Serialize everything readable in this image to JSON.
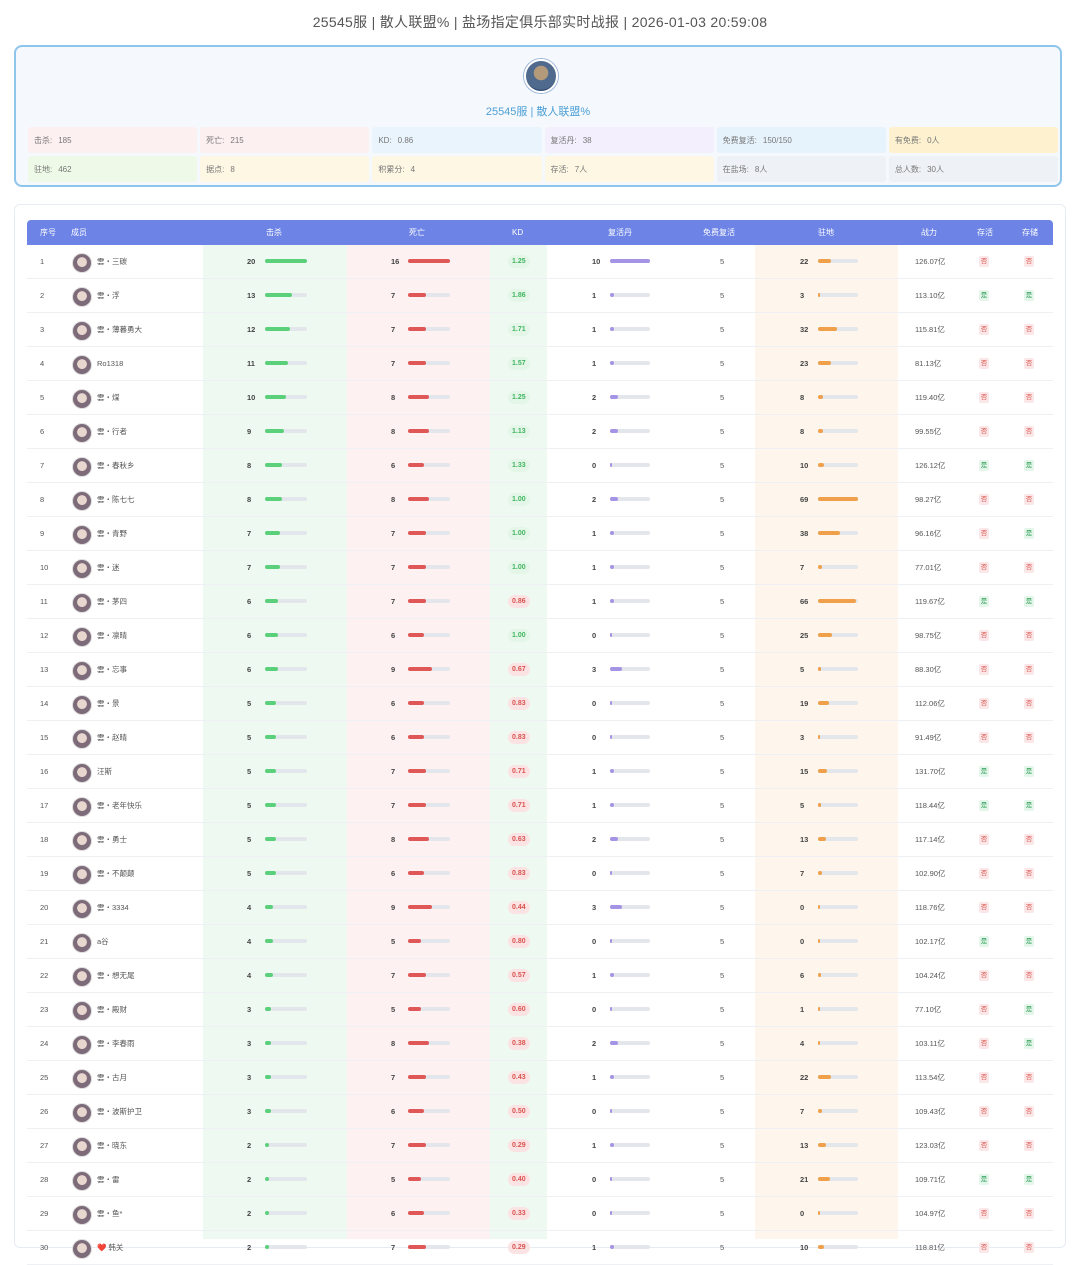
{
  "title": "25545服 | 散人联盟% | 盐场指定俱乐部实时战报 | 2026-01-03 20:59:08",
  "club": {
    "name": "25545服 | 散人联盟%"
  },
  "summary": [
    {
      "k": "击杀:",
      "v": "185",
      "bg": "#fdf0f0"
    },
    {
      "k": "死亡:",
      "v": "215",
      "bg": "#fdf0f0"
    },
    {
      "k": "KD:",
      "v": "0.86",
      "bg": "#eaf4fd"
    },
    {
      "k": "复活丹:",
      "v": "38",
      "bg": "#f3effc"
    },
    {
      "k": "免费复活:",
      "v": "150/150",
      "bg": "#e6f3fc"
    },
    {
      "k": "有免费:",
      "v": "0人",
      "bg": "#fdf1cf"
    },
    {
      "k": "驻地:",
      "v": "462",
      "bg": "#eef9e8"
    },
    {
      "k": "据点:",
      "v": "8",
      "bg": "#fdf7e3"
    },
    {
      "k": "积累分:",
      "v": "4",
      "bg": "#fdf7e3"
    },
    {
      "k": "存活:",
      "v": "7人",
      "bg": "#fdf7e3"
    },
    {
      "k": "在盐场:",
      "v": "8人",
      "bg": "#eef2f6"
    },
    {
      "k": "总人数:",
      "v": "30人",
      "bg": "#eef2f6"
    }
  ],
  "columns": [
    "序号",
    "成员",
    "击杀",
    "死亡",
    "KD",
    "复活丹",
    "免费复活",
    "驻地",
    "战力",
    "存活",
    "存储"
  ],
  "colors": {
    "kills": "#5bd07a",
    "deaths": "#e05757",
    "revive": "#a593e6",
    "base": "#f0a04b",
    "header": "#6d84e6",
    "kd_good": "#41b560",
    "kd_bad": "#d9534f"
  },
  "rows": [
    {
      "idx": "1",
      "name": "雲・三碳",
      "kills": "20",
      "deaths": "16",
      "kd": "1.25",
      "revive": "10",
      "free": "5",
      "base": "22",
      "power": "126.07亿",
      "alive": "否",
      "store": "否"
    },
    {
      "idx": "2",
      "name": "雲・浮",
      "kills": "13",
      "deaths": "7",
      "kd": "1.86",
      "revive": "1",
      "free": "5",
      "base": "3",
      "power": "113.10亿",
      "alive": "是",
      "store": "是"
    },
    {
      "idx": "3",
      "name": "雲・薄暮勇大",
      "kills": "12",
      "deaths": "7",
      "kd": "1.71",
      "revive": "1",
      "free": "5",
      "base": "32",
      "power": "115.81亿",
      "alive": "否",
      "store": "否"
    },
    {
      "idx": "4",
      "name": "Ro1318",
      "kills": "11",
      "deaths": "7",
      "kd": "1.57",
      "revive": "1",
      "free": "5",
      "base": "23",
      "power": "81.13亿",
      "alive": "否",
      "store": "否"
    },
    {
      "idx": "5",
      "name": "雲・煤",
      "kills": "10",
      "deaths": "8",
      "kd": "1.25",
      "revive": "2",
      "free": "5",
      "base": "8",
      "power": "119.40亿",
      "alive": "否",
      "store": "否"
    },
    {
      "idx": "6",
      "name": "雲・行者",
      "kills": "9",
      "deaths": "8",
      "kd": "1.13",
      "revive": "2",
      "free": "5",
      "base": "8",
      "power": "99.55亿",
      "alive": "否",
      "store": "否"
    },
    {
      "idx": "7",
      "name": "雲・春秋乡",
      "kills": "8",
      "deaths": "6",
      "kd": "1.33",
      "revive": "0",
      "free": "5",
      "base": "10",
      "power": "126.12亿",
      "alive": "是",
      "store": "是"
    },
    {
      "idx": "8",
      "name": "雲・陈七七",
      "kills": "8",
      "deaths": "8",
      "kd": "1.00",
      "revive": "2",
      "free": "5",
      "base": "69",
      "power": "98.27亿",
      "alive": "否",
      "store": "否"
    },
    {
      "idx": "9",
      "name": "雲・青野",
      "kills": "7",
      "deaths": "7",
      "kd": "1.00",
      "revive": "1",
      "free": "5",
      "base": "38",
      "power": "96.16亿",
      "alive": "否",
      "store": "是"
    },
    {
      "idx": "10",
      "name": "雲・迷",
      "kills": "7",
      "deaths": "7",
      "kd": "1.00",
      "revive": "1",
      "free": "5",
      "base": "7",
      "power": "77.01亿",
      "alive": "否",
      "store": "否"
    },
    {
      "idx": "11",
      "name": "雲・茅四",
      "kills": "6",
      "deaths": "7",
      "kd": "0.86",
      "revive": "1",
      "free": "5",
      "base": "66",
      "power": "119.67亿",
      "alive": "是",
      "store": "是"
    },
    {
      "idx": "12",
      "name": "雲・凛晴",
      "kills": "6",
      "deaths": "6",
      "kd": "1.00",
      "revive": "0",
      "free": "5",
      "base": "25",
      "power": "98.75亿",
      "alive": "否",
      "store": "否"
    },
    {
      "idx": "13",
      "name": "雲・忘事",
      "kills": "6",
      "deaths": "9",
      "kd": "0.67",
      "revive": "3",
      "free": "5",
      "base": "5",
      "power": "88.30亿",
      "alive": "否",
      "store": "否"
    },
    {
      "idx": "14",
      "name": "雲・景",
      "kills": "5",
      "deaths": "6",
      "kd": "0.83",
      "revive": "0",
      "free": "5",
      "base": "19",
      "power": "112.06亿",
      "alive": "否",
      "store": "否"
    },
    {
      "idx": "15",
      "name": "雲・赵晴",
      "kills": "5",
      "deaths": "6",
      "kd": "0.83",
      "revive": "0",
      "free": "5",
      "base": "3",
      "power": "91.49亿",
      "alive": "否",
      "store": "否"
    },
    {
      "idx": "16",
      "name": "汪斯",
      "kills": "5",
      "deaths": "7",
      "kd": "0.71",
      "revive": "1",
      "free": "5",
      "base": "15",
      "power": "131.70亿",
      "alive": "是",
      "store": "是"
    },
    {
      "idx": "17",
      "name": "雲・老年快乐",
      "kills": "5",
      "deaths": "7",
      "kd": "0.71",
      "revive": "1",
      "free": "5",
      "base": "5",
      "power": "118.44亿",
      "alive": "是",
      "store": "是"
    },
    {
      "idx": "18",
      "name": "雲・勇士",
      "kills": "5",
      "deaths": "8",
      "kd": "0.63",
      "revive": "2",
      "free": "5",
      "base": "13",
      "power": "117.14亿",
      "alive": "否",
      "store": "否"
    },
    {
      "idx": "19",
      "name": "雲・不颠颠",
      "kills": "5",
      "deaths": "6",
      "kd": "0.83",
      "revive": "0",
      "free": "5",
      "base": "7",
      "power": "102.90亿",
      "alive": "否",
      "store": "否"
    },
    {
      "idx": "20",
      "name": "雲・3334",
      "kills": "4",
      "deaths": "9",
      "kd": "0.44",
      "revive": "3",
      "free": "5",
      "base": "0",
      "power": "118.76亿",
      "alive": "否",
      "store": "否"
    },
    {
      "idx": "21",
      "name": "a谷",
      "kills": "4",
      "deaths": "5",
      "kd": "0.80",
      "revive": "0",
      "free": "5",
      "base": "0",
      "power": "102.17亿",
      "alive": "是",
      "store": "是"
    },
    {
      "idx": "22",
      "name": "雲・想无尾",
      "kills": "4",
      "deaths": "7",
      "kd": "0.57",
      "revive": "1",
      "free": "5",
      "base": "6",
      "power": "104.24亿",
      "alive": "否",
      "store": "否"
    },
    {
      "idx": "23",
      "name": "雲・殿财",
      "kills": "3",
      "deaths": "5",
      "kd": "0.60",
      "revive": "0",
      "free": "5",
      "base": "1",
      "power": "77.10亿",
      "alive": "否",
      "store": "是"
    },
    {
      "idx": "24",
      "name": "雲・李春雨",
      "kills": "3",
      "deaths": "8",
      "kd": "0.38",
      "revive": "2",
      "free": "5",
      "base": "4",
      "power": "103.11亿",
      "alive": "否",
      "store": "是"
    },
    {
      "idx": "25",
      "name": "雲・古月",
      "kills": "3",
      "deaths": "7",
      "kd": "0.43",
      "revive": "1",
      "free": "5",
      "base": "22",
      "power": "113.54亿",
      "alive": "否",
      "store": "否"
    },
    {
      "idx": "26",
      "name": "雲・波斯护卫",
      "kills": "3",
      "deaths": "6",
      "kd": "0.50",
      "revive": "0",
      "free": "5",
      "base": "7",
      "power": "109.43亿",
      "alive": "否",
      "store": "否"
    },
    {
      "idx": "27",
      "name": "雲・晓东",
      "kills": "2",
      "deaths": "7",
      "kd": "0.29",
      "revive": "1",
      "free": "5",
      "base": "13",
      "power": "123.03亿",
      "alive": "否",
      "store": "否"
    },
    {
      "idx": "28",
      "name": "雲・雷",
      "kills": "2",
      "deaths": "5",
      "kd": "0.40",
      "revive": "0",
      "free": "5",
      "base": "21",
      "power": "109.71亿",
      "alive": "是",
      "store": "是"
    },
    {
      "idx": "29",
      "name": "雲・鱼*",
      "kills": "2",
      "deaths": "6",
      "kd": "0.33",
      "revive": "0",
      "free": "5",
      "base": "0",
      "power": "104.97亿",
      "alive": "否",
      "store": "否"
    },
    {
      "idx": "30",
      "name": "❤️ 韩关",
      "kills": "2",
      "deaths": "7",
      "kd": "0.29",
      "revive": "1",
      "free": "5",
      "base": "10",
      "power": "118.81亿",
      "alive": "否",
      "store": "否"
    }
  ]
}
